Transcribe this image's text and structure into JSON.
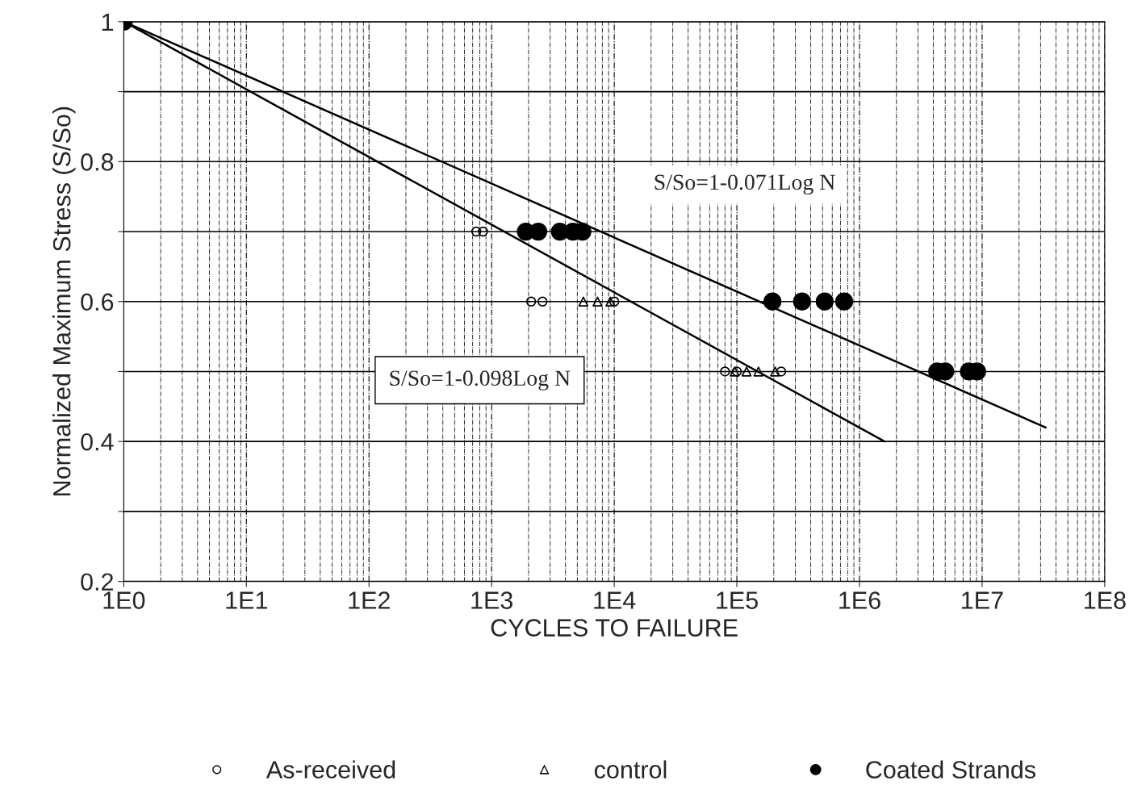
{
  "chart_data": {
    "type": "scatter",
    "xlabel": "CYCLES TO FAILURE",
    "ylabel": "Normalized Maximum Stress (S/So)",
    "log": "x",
    "grid": true,
    "legend": "bottom",
    "xlim": [
      1,
      100000000
    ],
    "ylim": [
      0.2,
      1.0
    ],
    "xticks": [
      {
        "value": 1,
        "label": "1E0"
      },
      {
        "value": 10,
        "label": "1E1"
      },
      {
        "value": 100,
        "label": "1E2"
      },
      {
        "value": 1000,
        "label": "1E3"
      },
      {
        "value": 10000,
        "label": "1E4"
      },
      {
        "value": 100000,
        "label": "1E5"
      },
      {
        "value": 1000000,
        "label": "1E6"
      },
      {
        "value": 10000000,
        "label": "1E7"
      },
      {
        "value": 100000000,
        "label": "1E8"
      }
    ],
    "yticks": [
      0.2,
      {
        "value": 0.3,
        "label": null
      },
      0.4,
      {
        "value": 0.5,
        "label": null
      },
      0.6,
      {
        "value": 0.7,
        "label": null
      },
      0.8,
      {
        "value": 0.9,
        "label": null
      },
      1
    ],
    "annotations": [
      "S/So=1-0.071Log N",
      "S/So=1-0.098Log N"
    ],
    "series": [
      {
        "name": "As-received",
        "marker": "circle",
        "color": "#000000",
        "x": [
          750,
          850,
          2100,
          2600,
          10000,
          80000,
          100000,
          230000
        ],
        "values": [
          0.7,
          0.7,
          0.6,
          0.6,
          0.6,
          0.5,
          0.5,
          0.5
        ]
      },
      {
        "name": "control",
        "marker": "triangle",
        "color": "#000000",
        "x": [
          5600,
          7300,
          9300,
          96000,
          120000,
          150000,
          205000
        ],
        "values": [
          0.6,
          0.6,
          0.6,
          0.5,
          0.5,
          0.5,
          0.5
        ]
      },
      {
        "name": "Coated Strands",
        "marker": "circle",
        "color": "#000000",
        "x": [
          1,
          1900,
          2400,
          3600,
          4600,
          5500,
          195000,
          340000,
          520000,
          750000,
          4300000,
          5000000,
          7800000,
          9100000
        ],
        "values": [
          1,
          0.7,
          0.7,
          0.7,
          0.7,
          0.7,
          0.6,
          0.6,
          0.6,
          0.6,
          0.5,
          0.5,
          0.5,
          0.5
        ]
      },
      {
        "type": "line",
        "color": "#000000",
        "x": [
          1,
          33000000
        ],
        "values": [
          1,
          0.42
        ]
      },
      {
        "type": "line",
        "color": "#000000",
        "x": [
          1,
          1600000
        ],
        "values": [
          1,
          0.4
        ]
      }
    ]
  }
}
